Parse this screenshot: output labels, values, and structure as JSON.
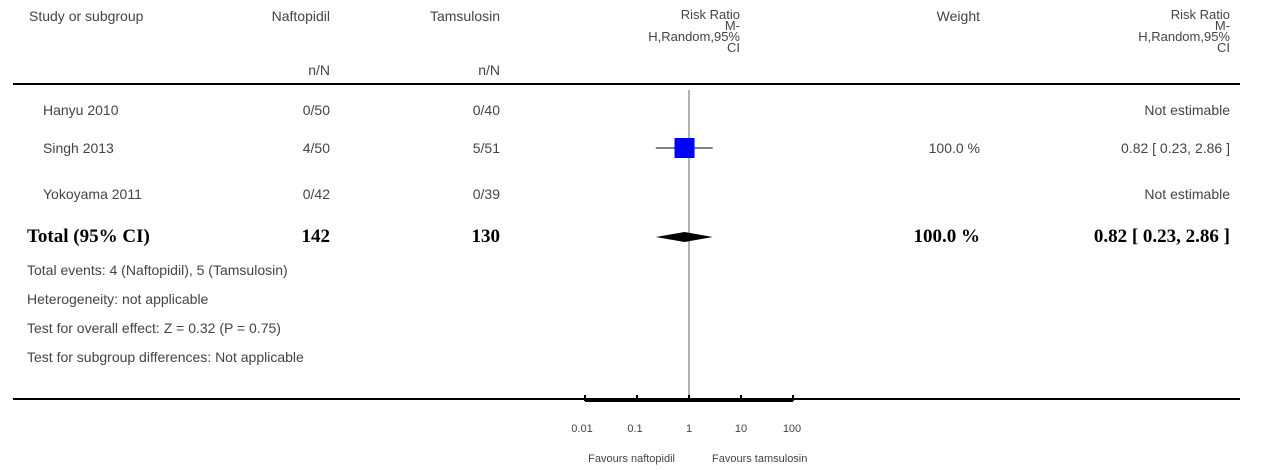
{
  "header": {
    "study": "Study or subgroup",
    "naftopidil": "Naftopidil",
    "tamsulosin": "Tamsulosin",
    "risk_ratio_plot": "Risk Ratio\nM-\nH,Random,95%\nCI",
    "weight": "Weight",
    "risk_ratio_text": "Risk Ratio\nM-\nH,Random,95%\nCI",
    "nN1": "n/N",
    "nN2": "n/N"
  },
  "studies": [
    {
      "name": "Hanyu 2010",
      "naftopidil": "0/50",
      "tamsulosin": "0/40",
      "weight": "",
      "ci_text": "Not estimable"
    },
    {
      "name": "Singh 2013",
      "naftopidil": "4/50",
      "tamsulosin": "5/51",
      "weight": "100.0 %",
      "ci_text": "0.82 [ 0.23, 2.86 ]"
    },
    {
      "name": "Yokoyama 2011",
      "naftopidil": "0/42",
      "tamsulosin": "0/39",
      "weight": "",
      "ci_text": "Not estimable"
    }
  ],
  "total": {
    "label": "Total (95% CI)",
    "naftopidil": "142",
    "tamsulosin": "130",
    "weight": "100.0 %",
    "ci_text": "0.82 [ 0.23, 2.86 ]"
  },
  "footnotes": [
    "Total events: 4 (Naftopidil), 5 (Tamsulosin)",
    "Heterogeneity: not applicable",
    "Test for overall effect: Z = 0.32 (P = 0.75)",
    "Test for subgroup differences: Not applicable"
  ],
  "axis": {
    "ticks": [
      "0.01",
      "0.1",
      "1",
      "10",
      "100"
    ],
    "favours_left": "Favours naftopidil",
    "favours_right": "Favours tamsulosin"
  },
  "colors": {
    "study_marker": "#0000ff",
    "diamond": "#000000",
    "line": "#000000"
  },
  "chart_data": {
    "type": "forest",
    "scale": "log",
    "xlim": [
      0.01,
      100
    ],
    "null_line": 1,
    "points": [
      {
        "study": "Hanyu 2010",
        "estimate": null,
        "lower": null,
        "upper": null
      },
      {
        "study": "Singh 2013",
        "estimate": 0.82,
        "lower": 0.23,
        "upper": 2.86,
        "weight": 100.0
      },
      {
        "study": "Yokoyama 2011",
        "estimate": null,
        "lower": null,
        "upper": null
      }
    ],
    "pooled": {
      "estimate": 0.82,
      "lower": 0.23,
      "upper": 2.86
    }
  }
}
